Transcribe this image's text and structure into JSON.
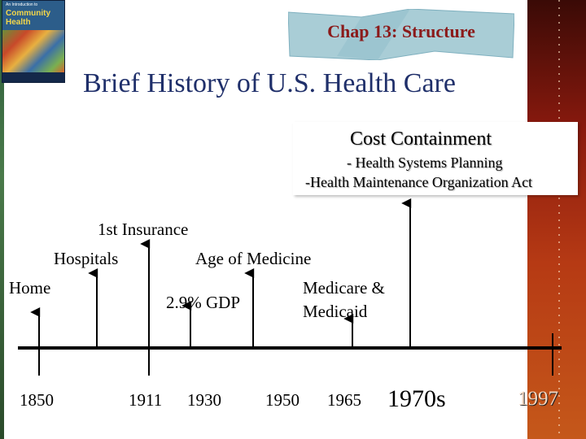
{
  "book": {
    "line1": "An Introduction to",
    "line2": "Community",
    "line3": "Health"
  },
  "header": {
    "chapter": "Chap 13: Structure",
    "title": "Brief History of U.S. Health Care"
  },
  "callout": {
    "heading": "Cost Containment",
    "items": [
      "- Health Systems Planning",
      "-Health Maintenance Organization Act"
    ]
  },
  "timeline": {
    "events": {
      "insurance": "1st Insurance",
      "hospitals": "Hospitals",
      "age_of_medicine": "Age of Medicine",
      "home": "Home",
      "gdp": "2.9% GDP",
      "medicare_line1": "Medicare &",
      "medicare_line2": "Medicaid"
    },
    "years": [
      "1850",
      "1911",
      "1930",
      "1950",
      "1965",
      "1970s",
      "1997"
    ]
  },
  "colors": {
    "title": "#1f2f6a",
    "chapter_text": "#8b1a1a",
    "banner": "#a9cdd6",
    "right_strip": "#b63a14"
  }
}
